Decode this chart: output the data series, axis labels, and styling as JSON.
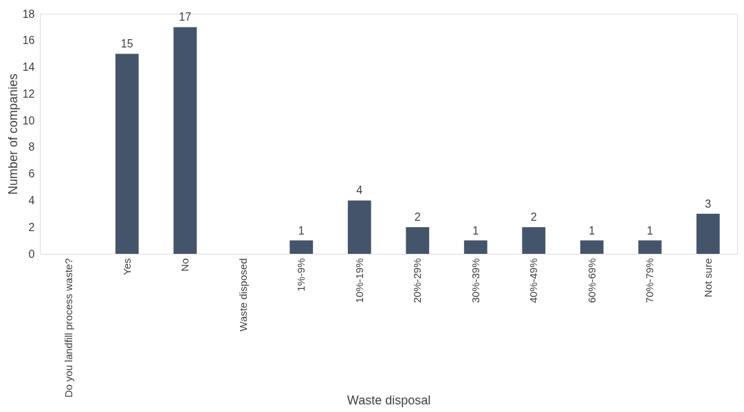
{
  "chart_data": {
    "type": "bar",
    "xlabel": "Waste disposal",
    "ylabel": "Number of companies",
    "categories": [
      "Do you landfill process waste?",
      "Yes",
      "No",
      "Waste disposed",
      "1%-9%",
      "10%-19%",
      "20%-29%",
      "30%-39%",
      "40%-49%",
      "60%-69%",
      "70%-79%",
      "Not sure"
    ],
    "values": [
      null,
      15,
      17,
      null,
      1,
      4,
      2,
      1,
      2,
      1,
      1,
      3
    ],
    "color": "#44546a",
    "ylim": [
      0,
      18
    ],
    "yticks": [
      0,
      2,
      4,
      6,
      8,
      10,
      12,
      14,
      16,
      18
    ],
    "data_labels": true,
    "grid": false
  }
}
